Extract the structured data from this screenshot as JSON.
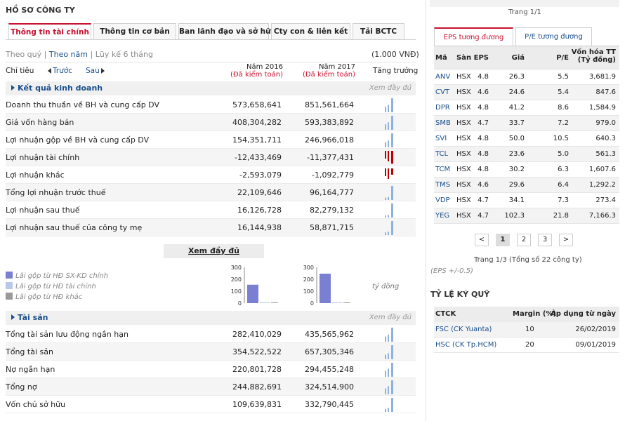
{
  "title": "HỒ SƠ CÔNG TY",
  "tabs": [
    "Thông tin tài chính",
    "Thông tin cơ bản",
    "Ban lãnh đạo và sở hữu",
    "Cty con & liên kết",
    "Tải BCTC"
  ],
  "period": {
    "quarter": "Theo quý",
    "year": "Theo năm",
    "cumulative": "Lũy kế 6 tháng",
    "sep": "|"
  },
  "unit": "(1.000 VNĐ)",
  "table_header": {
    "indicator": "Chỉ tiêu",
    "prev": "Trước",
    "next": "Sau",
    "col1_year": "Năm 2016",
    "col1_sub": "(Đã kiểm toán)",
    "col2_year": "Năm 2017",
    "col2_sub": "(Đã kiểm toán)",
    "growth": "Tăng trưởng"
  },
  "section1": {
    "title": "Kết quả kinh doanh",
    "more": "Xem đầy đủ"
  },
  "rows1": [
    {
      "label": "Doanh thu thuần về BH và cung cấp DV",
      "v1": "573,658,641",
      "v2": "851,561,664"
    },
    {
      "label": "Giá vốn hàng bán",
      "v1": "408,304,282",
      "v2": "593,383,892"
    },
    {
      "label": "Lợi nhuận gộp về BH và cung cấp DV",
      "v1": "154,351,711",
      "v2": "246,966,018"
    },
    {
      "label": "Lợi nhuận tài chính",
      "v1": "-12,433,469",
      "v2": "-11,377,431"
    },
    {
      "label": "Lợi nhuận khác",
      "v1": "-2,593,079",
      "v2": "-1,092,779"
    },
    {
      "label": "Tổng lợi nhuận trước thuế",
      "v1": "22,109,646",
      "v2": "96,164,777"
    },
    {
      "label": "Lợi nhuận sau thuế",
      "v1": "16,126,728",
      "v2": "82,279,132"
    },
    {
      "label": "Lợi nhuận sau thuế của công ty mẹ",
      "v1": "16,144,938",
      "v2": "58,871,715"
    }
  ],
  "more_button": "Xem đầy đủ",
  "legend": [
    "Lãi gộp từ HĐ SX-KD chính",
    "Lãi gộp từ HĐ tài chính",
    "Lãi gộp từ HĐ khác"
  ],
  "mini_chart": {
    "yticks": [
      "300",
      "200",
      "100",
      "0"
    ],
    "unit_label": "tỷ đồng",
    "colors": {
      "main": "#7b7fd1",
      "fin": "#b9c8e8",
      "other": "#9a9a9a"
    }
  },
  "chart_data": [
    {
      "type": "bar",
      "title": "Năm 2016",
      "ylim": [
        0,
        300
      ],
      "categories": [
        "Lãi gộp từ HĐ SX-KD chính",
        "Lãi gộp từ HĐ tài chính",
        "Lãi gộp từ HĐ khác"
      ],
      "values": [
        154.35,
        -12.43,
        -2.59
      ]
    },
    {
      "type": "bar",
      "title": "Năm 2017",
      "ylim": [
        0,
        300
      ],
      "categories": [
        "Lãi gộp từ HĐ SX-KD chính",
        "Lãi gộp từ HĐ tài chính",
        "Lãi gộp từ HĐ khác"
      ],
      "values": [
        246.97,
        -11.38,
        -1.09
      ]
    }
  ],
  "section2": {
    "title": "Tài sản",
    "more": "Xem đầy đủ"
  },
  "rows2": [
    {
      "label": "Tổng tài sản lưu động ngắn hạn",
      "v1": "282,410,029",
      "v2": "435,565,962"
    },
    {
      "label": "Tổng tài sản",
      "v1": "354,522,522",
      "v2": "657,305,346"
    },
    {
      "label": "Nợ ngắn hạn",
      "v1": "220,801,728",
      "v2": "294,455,248"
    },
    {
      "label": "Tổng nợ",
      "v1": "244,882,691",
      "v2": "324,514,900"
    },
    {
      "label": "Vốn chủ sở hữu",
      "v1": "109,639,831",
      "v2": "332,790,445"
    }
  ],
  "right": {
    "page_top": "Trang 1/1",
    "tabs": [
      "EPS tương đương",
      "P/E tương đương"
    ],
    "headers": {
      "code": "Mã",
      "exchange": "Sàn",
      "eps": "EPS",
      "price": "Giá",
      "pe": "P/E",
      "cap": "Vốn hóa TT",
      "cap_unit": "(Tỷ đồng)"
    },
    "peers": [
      {
        "code": "ANV",
        "ex": "HSX",
        "eps": "4.8",
        "price": "26.3",
        "pe": "5.5",
        "cap": "3,681.9"
      },
      {
        "code": "CVT",
        "ex": "HSX",
        "eps": "4.6",
        "price": "24.6",
        "pe": "5.4",
        "cap": "847.6"
      },
      {
        "code": "DPR",
        "ex": "HSX",
        "eps": "4.8",
        "price": "41.2",
        "pe": "8.6",
        "cap": "1,584.9"
      },
      {
        "code": "SMB",
        "ex": "HSX",
        "eps": "4.7",
        "price": "33.7",
        "pe": "7.2",
        "cap": "979.0"
      },
      {
        "code": "SVI",
        "ex": "HSX",
        "eps": "4.8",
        "price": "50.0",
        "pe": "10.5",
        "cap": "640.3"
      },
      {
        "code": "TCL",
        "ex": "HSX",
        "eps": "4.8",
        "price": "23.6",
        "pe": "5.0",
        "cap": "561.3"
      },
      {
        "code": "TCM",
        "ex": "HSX",
        "eps": "4.8",
        "price": "30.2",
        "pe": "6.3",
        "cap": "1,607.6"
      },
      {
        "code": "TMS",
        "ex": "HSX",
        "eps": "4.6",
        "price": "29.6",
        "pe": "6.4",
        "cap": "1,292.2"
      },
      {
        "code": "VDP",
        "ex": "HSX",
        "eps": "4.7",
        "price": "34.1",
        "pe": "7.3",
        "cap": "273.4"
      },
      {
        "code": "YEG",
        "ex": "HSX",
        "eps": "4.7",
        "price": "102.3",
        "pe": "21.8",
        "cap": "7,166.3"
      }
    ],
    "pager": [
      "<",
      "1",
      "2",
      "3",
      ">"
    ],
    "page_info": "Trang 1/3 (Tổng số 22 công ty)",
    "eps_note": "(EPS +/-0.5)",
    "margin_title": "TỶ LỆ KÝ QUỸ",
    "margin_headers": {
      "ctck": "CTCK",
      "margin": "Margin (%)",
      "date": "Áp dụng từ ngày"
    },
    "margin_rows": [
      {
        "ctck": "FSC (CK Yuanta)",
        "margin": "10",
        "date": "26/02/2019"
      },
      {
        "ctck": "HSC (CK Tp.HCM)",
        "margin": "20",
        "date": "09/01/2019"
      }
    ]
  },
  "colors": {
    "accent_red": "#c8102e",
    "link_blue": "#1a4f8b",
    "spark_pos": "#8fb3e0",
    "spark_neg": "#c00000"
  }
}
